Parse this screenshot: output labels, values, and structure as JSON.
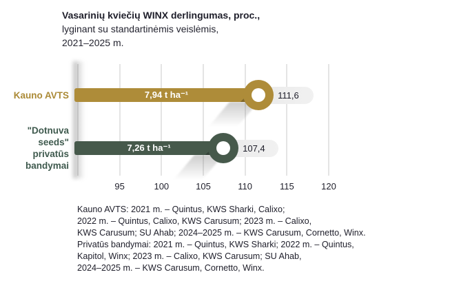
{
  "title": {
    "line1": "Vasarinių kviečių WINX derlingumas, proc.,",
    "line2": "lyginant su standartinėmis veislėmis,",
    "line3": "2021–2025 m."
  },
  "chart_data": {
    "type": "bar",
    "orientation": "horizontal",
    "title": "Vasarinių kviečių WINX derlingumas, proc., lyginant su standartinėmis veislėmis, 2021–2025 m.",
    "categories": [
      "Kauno AVTS",
      "\"Dotnuva seeds\" privatūs bandymai"
    ],
    "category_label_lines": [
      [
        "Kauno AVTS"
      ],
      [
        "\"Dotnuva",
        "seeds\"",
        "privatūs",
        "bandymai"
      ]
    ],
    "values": [
      111.6,
      107.4
    ],
    "value_labels": [
      "111,6",
      "107,4"
    ],
    "bar_labels": [
      "7,94 t ha⁻¹",
      "7,26 t ha⁻¹"
    ],
    "bar_colors": [
      "#ae8c39",
      "#46594b"
    ],
    "label_colors": [
      "#ab8a36",
      "#3f5a4e"
    ],
    "xlim": [
      90,
      120
    ],
    "xticks": [
      95,
      100,
      105,
      110,
      115,
      120
    ],
    "gridline_values": [
      90,
      95,
      100,
      105,
      110,
      115,
      120
    ],
    "grid": true,
    "legend_position": "none",
    "value_unit": "proc.",
    "pill_background": "#ececec",
    "gridline_color": "#e4e4e4"
  },
  "footnote": {
    "lines": [
      "Kauno AVTS: 2021 m. – Quintus, KWS Sharki, Calixo;",
      "2022 m. – Quintus, Calixo, KWS Carusum; 2023 m. – Calixo,",
      "KWS Carusum; SU Ahab; 2024–2025 m. – KWS Carusum, Cornetto, Winx.",
      "Privatūs bandymai: 2021 m. – Quintus, KWS Sharki; 2022 m. – Quintus,",
      "Kapitol, Winx; 2023 m. – Calixo, KWS Carusum; SU Ahab,",
      "2024–2025 m. – KWS Carusum, Cornetto, Winx."
    ]
  }
}
